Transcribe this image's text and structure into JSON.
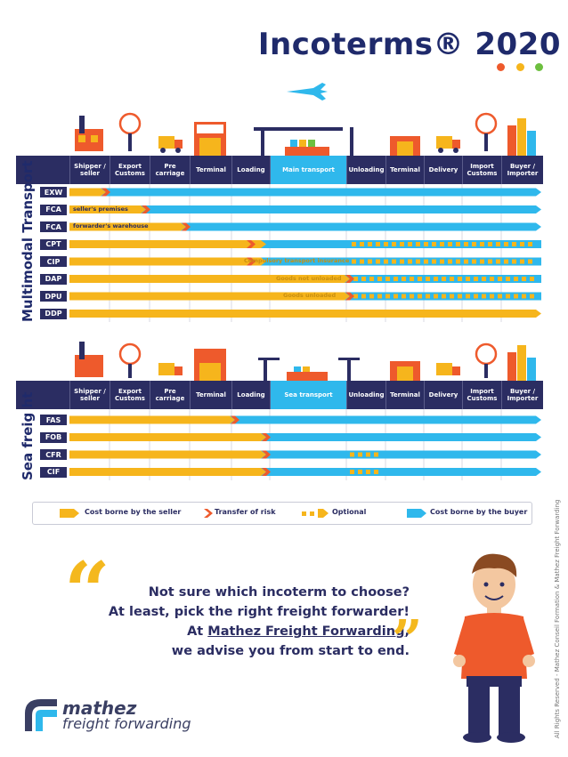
{
  "title": "Incoterms® 2020",
  "colors": {
    "seller": "#f6b51c",
    "buyer": "#2fb8ec",
    "risk": "#ee5a2c",
    "header": "#2b2d62"
  },
  "multimodal": {
    "label": "Multimodal Transport",
    "headers": [
      "Shipper / seller",
      "Export Customs",
      "Pre carriage",
      "Terminal",
      "Loading",
      "Main transport",
      "Unloading",
      "Terminal",
      "Delivery",
      "Import Customs",
      "Buyer / Importer"
    ],
    "rows": [
      {
        "code": "EXW",
        "note": ""
      },
      {
        "code": "FCA",
        "note": "seller's premises"
      },
      {
        "code": "FCA",
        "note": "forwarder's warehouse"
      },
      {
        "code": "CPT",
        "note": ""
      },
      {
        "code": "CIP",
        "note": "Compulsory transport insurance"
      },
      {
        "code": "DAP",
        "note": "Goods not unloaded"
      },
      {
        "code": "DPU",
        "note": "Goods unloaded"
      },
      {
        "code": "DDP",
        "note": ""
      }
    ]
  },
  "sea": {
    "label": "Sea freig ht",
    "headers": [
      "Shipper / seller",
      "Export Customs",
      "Pre carriage",
      "Terminal",
      "Loading",
      "Sea transport",
      "Unloading",
      "Terminal",
      "Delivery",
      "Import Customs",
      "Buyer / Importer"
    ],
    "rows": [
      {
        "code": "FAS"
      },
      {
        "code": "FOB"
      },
      {
        "code": "CFR"
      },
      {
        "code": "CIF"
      }
    ]
  },
  "legend": {
    "seller": "Cost borne by the seller",
    "risk": "Transfer of risk",
    "optional": "Optional",
    "buyer": "Cost borne by the buyer"
  },
  "quote": {
    "line1": "Not sure which incoterm to choose?",
    "line2": "At least, pick the right freight forwarder!",
    "line3_prefix": "At ",
    "line3_link": "Mathez Freight Forwarding",
    "line3_suffix": ",",
    "line4": "we advise you from start to end."
  },
  "logo": {
    "line1": "mathez",
    "line2": "freight forwarding"
  },
  "copyright": "All Rights Reserved - Mathez Conseil Formation & Mathez Freight Forwarding"
}
